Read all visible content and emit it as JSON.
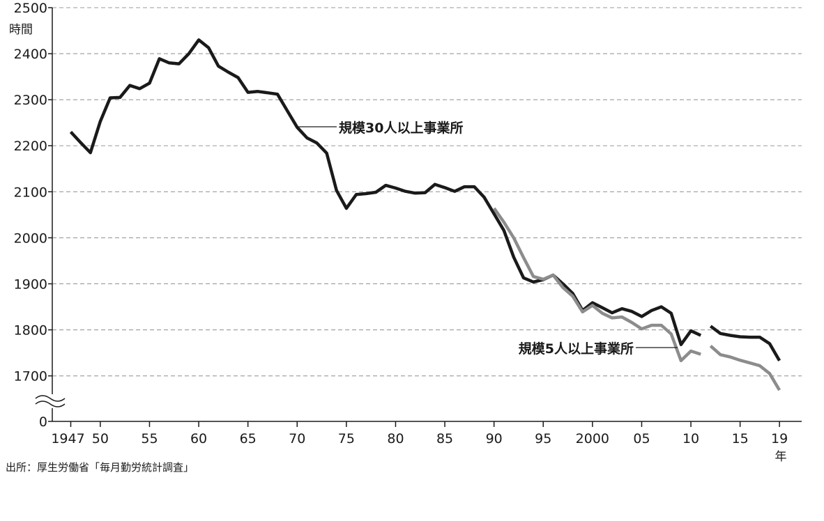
{
  "chart_data": {
    "type": "line",
    "y_unit": "時間",
    "x_unit": "年",
    "ylim": [
      1650,
      2500
    ],
    "y_ticks": [
      "0",
      "1700",
      "1800",
      "1900",
      "2000",
      "2100",
      "2200",
      "2300",
      "2400",
      "2500"
    ],
    "y_axis_break": true,
    "grid": "horizontal dashed",
    "x_ticks": [
      {
        "year": 1947,
        "label": "1947"
      },
      {
        "year": 1950,
        "label": "50"
      },
      {
        "year": 1955,
        "label": "55"
      },
      {
        "year": 1960,
        "label": "60"
      },
      {
        "year": 1965,
        "label": "65"
      },
      {
        "year": 1970,
        "label": "70"
      },
      {
        "year": 1975,
        "label": "75"
      },
      {
        "year": 1980,
        "label": "80"
      },
      {
        "year": 1985,
        "label": "85"
      },
      {
        "year": 1990,
        "label": "90"
      },
      {
        "year": 1995,
        "label": "95"
      },
      {
        "year": 2000,
        "label": "2000"
      },
      {
        "year": 2005,
        "label": "05"
      },
      {
        "year": 2010,
        "label": "10"
      },
      {
        "year": 2015,
        "label": "15"
      },
      {
        "year": 2019,
        "label": "19"
      }
    ],
    "series": [
      {
        "name": "規模30人以上事業所",
        "color": "#1a1a1a",
        "segments": [
          [
            [
              1947,
              2230
            ],
            [
              1948,
              2207
            ],
            [
              1949,
              2185
            ],
            [
              1950,
              2253
            ],
            [
              1951,
              2304
            ],
            [
              1952,
              2305
            ],
            [
              1953,
              2331
            ],
            [
              1954,
              2324
            ],
            [
              1955,
              2336
            ],
            [
              1956,
              2389
            ],
            [
              1957,
              2380
            ],
            [
              1958,
              2378
            ],
            [
              1959,
              2400
            ],
            [
              1960,
              2430
            ],
            [
              1961,
              2413
            ],
            [
              1962,
              2373
            ],
            [
              1963,
              2360
            ],
            [
              1964,
              2348
            ],
            [
              1965,
              2316
            ],
            [
              1966,
              2318
            ],
            [
              1967,
              2315
            ],
            [
              1968,
              2312
            ],
            [
              1969,
              2276
            ],
            [
              1970,
              2240
            ],
            [
              1971,
              2217
            ],
            [
              1972,
              2206
            ],
            [
              1973,
              2184
            ],
            [
              1974,
              2103
            ],
            [
              1975,
              2064
            ],
            [
              1976,
              2094
            ],
            [
              1977,
              2096
            ],
            [
              1978,
              2099
            ],
            [
              1979,
              2114
            ],
            [
              1980,
              2108
            ],
            [
              1981,
              2101
            ],
            [
              1982,
              2097
            ],
            [
              1983,
              2098
            ],
            [
              1984,
              2116
            ],
            [
              1985,
              2109
            ],
            [
              1986,
              2101
            ],
            [
              1987,
              2111
            ],
            [
              1988,
              2111
            ],
            [
              1989,
              2088
            ],
            [
              1990,
              2052
            ],
            [
              1991,
              2016
            ],
            [
              1992,
              1958
            ],
            [
              1993,
              1913
            ],
            [
              1994,
              1904
            ],
            [
              1995,
              1909
            ],
            [
              1996,
              1919
            ],
            [
              1997,
              1900
            ],
            [
              1998,
              1879
            ],
            [
              1999,
              1842
            ],
            [
              2000,
              1859
            ],
            [
              2001,
              1848
            ],
            [
              2002,
              1837
            ],
            [
              2003,
              1846
            ],
            [
              2004,
              1840
            ],
            [
              2005,
              1829
            ],
            [
              2006,
              1842
            ],
            [
              2007,
              1850
            ],
            [
              2008,
              1836
            ],
            [
              2009,
              1768
            ],
            [
              2010,
              1798
            ],
            [
              2011,
              1788
            ]
          ],
          [
            [
              2012,
              1808
            ],
            [
              2013,
              1792
            ],
            [
              2014,
              1788
            ],
            [
              2015,
              1785
            ],
            [
              2016,
              1784
            ],
            [
              2017,
              1784
            ],
            [
              2018,
              1770
            ],
            [
              2019,
              1733
            ]
          ]
        ]
      },
      {
        "name": "規模5人以上事業所",
        "color": "#8c8c8c",
        "segments": [
          [
            [
              1990,
              2064
            ],
            [
              1991,
              2034
            ],
            [
              1992,
              2000
            ],
            [
              1993,
              1957
            ],
            [
              1994,
              1916
            ],
            [
              1995,
              1910
            ],
            [
              1996,
              1919
            ],
            [
              1997,
              1892
            ],
            [
              1998,
              1873
            ],
            [
              1999,
              1839
            ],
            [
              2000,
              1853
            ],
            [
              2001,
              1836
            ],
            [
              2002,
              1826
            ],
            [
              2003,
              1828
            ],
            [
              2004,
              1816
            ],
            [
              2005,
              1802
            ],
            [
              2006,
              1810
            ],
            [
              2007,
              1810
            ],
            [
              2008,
              1791
            ],
            [
              2009,
              1733
            ],
            [
              2010,
              1754
            ],
            [
              2011,
              1747
            ]
          ],
          [
            [
              2012,
              1765
            ],
            [
              2013,
              1746
            ],
            [
              2014,
              1741
            ],
            [
              2015,
              1734
            ],
            [
              2016,
              1728
            ],
            [
              2017,
              1722
            ],
            [
              2018,
              1705
            ],
            [
              2019,
              1669
            ]
          ]
        ]
      }
    ]
  },
  "source_text": "出所：厚生労働省「毎月勤労統計調査」"
}
